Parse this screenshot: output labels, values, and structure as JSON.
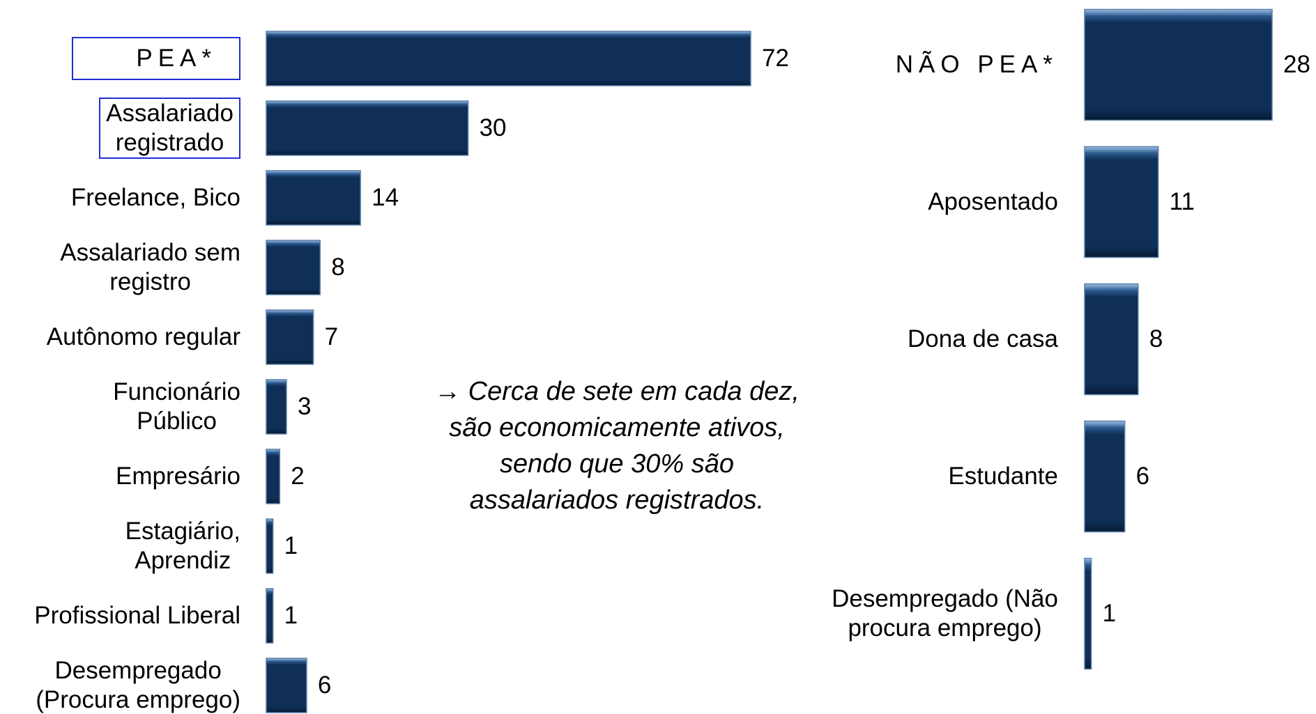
{
  "chart_data": [
    {
      "type": "barh",
      "categories": [
        "PEA*",
        "Assalariado\nregistrado",
        "Freelance, Bico",
        "Assalariado sem\nregistro",
        "Autônomo regular",
        "Funcionário\nPúblico",
        "Empresário",
        "Estagiário,\nAprendiz",
        "Profissional Liberal",
        "Desempregado\n(Procura emprego)"
      ],
      "values": [
        72,
        30,
        14,
        8,
        7,
        3,
        2,
        1,
        1,
        6
      ],
      "color": "#0f2f57",
      "xlim": [
        0,
        72
      ]
    },
    {
      "type": "barh",
      "categories": [
        "NÃO PEA*",
        "Aposentado",
        "Dona de casa",
        "Estudante",
        "Desempregado (Não\nprocura emprego)"
      ],
      "values": [
        28,
        11,
        8,
        6,
        1
      ],
      "color": "#0f2f57",
      "xlim": [
        0,
        28
      ]
    }
  ],
  "annotation": "→ Cerca de sete em cada dez,\nsão economicamente ativos,\nsendo que 30% são\nassalariados registrados."
}
